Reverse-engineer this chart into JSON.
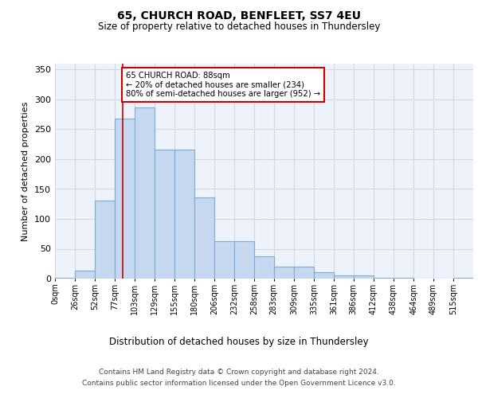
{
  "title1": "65, CHURCH ROAD, BENFLEET, SS7 4EU",
  "title2": "Size of property relative to detached houses in Thundersley",
  "xlabel": "Distribution of detached houses by size in Thundersley",
  "ylabel": "Number of detached properties",
  "bin_labels": [
    "0sqm",
    "26sqm",
    "52sqm",
    "77sqm",
    "103sqm",
    "129sqm",
    "155sqm",
    "180sqm",
    "206sqm",
    "232sqm",
    "258sqm",
    "283sqm",
    "309sqm",
    "335sqm",
    "361sqm",
    "386sqm",
    "412sqm",
    "438sqm",
    "464sqm",
    "489sqm",
    "515sqm"
  ],
  "bin_edges": [
    0,
    26,
    52,
    77,
    103,
    129,
    155,
    180,
    206,
    232,
    258,
    283,
    309,
    335,
    361,
    386,
    412,
    438,
    464,
    489,
    515,
    541
  ],
  "bar_heights": [
    2,
    13,
    130,
    268,
    287,
    216,
    216,
    136,
    63,
    63,
    37,
    20,
    20,
    11,
    5,
    5,
    2,
    1,
    0,
    0,
    1
  ],
  "bar_color": "#c5d8f0",
  "bar_edge_color": "#7aadd4",
  "grid_color": "#d0d8e8",
  "background_color": "#eef2fa",
  "annotation_text": "65 CHURCH ROAD: 88sqm\n← 20% of detached houses are smaller (234)\n80% of semi-detached houses are larger (952) →",
  "annotation_box_color": "#ffffff",
  "annotation_box_edge_color": "#cc0000",
  "red_line_x": 88,
  "ylim": [
    0,
    360
  ],
  "yticks": [
    0,
    50,
    100,
    150,
    200,
    250,
    300,
    350
  ],
  "footer1": "Contains HM Land Registry data © Crown copyright and database right 2024.",
  "footer2": "Contains public sector information licensed under the Open Government Licence v3.0."
}
